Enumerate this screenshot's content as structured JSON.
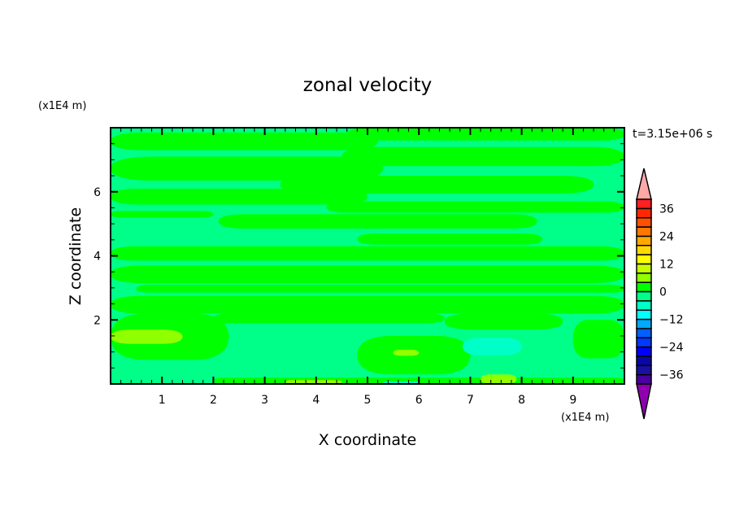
{
  "chart_data": {
    "type": "heatmap",
    "title": "zonal velocity",
    "xlabel": "X coordinate",
    "ylabel": "Z coordinate",
    "x_unit_label": "(x1E4 m)",
    "y_unit_label": "(x1E4 m)",
    "time_label": "t=3.15e+06 s",
    "xlim": [
      0,
      10
    ],
    "ylim": [
      0,
      8
    ],
    "x_ticks": [
      1,
      2,
      3,
      4,
      5,
      6,
      7,
      8,
      9
    ],
    "y_ticks": [
      2,
      4,
      6
    ],
    "colorbar": {
      "levels": [
        -40,
        -36,
        -32,
        -28,
        -24,
        -20,
        -16,
        -12,
        -8,
        -4,
        0,
        4,
        8,
        12,
        16,
        20,
        24,
        28,
        32,
        36,
        40
      ],
      "tick_labels": [
        "36",
        "24",
        "12",
        "0",
        "−12",
        "−24",
        "−36"
      ],
      "tick_values": [
        36,
        24,
        12,
        0,
        -12,
        -24,
        -36
      ],
      "colors": [
        "#4a00a0",
        "#1a10a0",
        "#0808a8",
        "#0000ff",
        "#0038ff",
        "#0060ff",
        "#00a8ff",
        "#00ffff",
        "#00ffc8",
        "#00ff88",
        "#00ff00",
        "#90ff00",
        "#c8ff00",
        "#ffff00",
        "#ffd800",
        "#ffa800",
        "#ff7800",
        "#ff5000",
        "#ff2800",
        "#ff2020"
      ],
      "over_color": "#ffa8a8",
      "under_color": "#9000b0"
    },
    "background_level": [
      -4,
      0
    ],
    "regions": [
      {
        "level": [
          0,
          4
        ],
        "x": [
          0,
          5.2
        ],
        "y": [
          7.85,
          7.3
        ]
      },
      {
        "level": [
          0,
          4
        ],
        "x": [
          4.6,
          10
        ],
        "y": [
          8.0,
          7.6
        ]
      },
      {
        "level": [
          0,
          4
        ],
        "x": [
          4.5,
          10
        ],
        "y": [
          7.4,
          6.8
        ]
      },
      {
        "level": [
          0,
          4
        ],
        "x": [
          0,
          5.3
        ],
        "y": [
          7.1,
          6.35
        ]
      },
      {
        "level": [
          0,
          4
        ],
        "x": [
          3.3,
          9.4
        ],
        "y": [
          6.5,
          5.95
        ]
      },
      {
        "level": [
          0,
          4
        ],
        "x": [
          0,
          5.0
        ],
        "y": [
          6.1,
          5.6
        ]
      },
      {
        "level": [
          0,
          4
        ],
        "x": [
          4.2,
          10
        ],
        "y": [
          5.7,
          5.35
        ]
      },
      {
        "level": [
          0,
          4
        ],
        "x": [
          0,
          2.0
        ],
        "y": [
          5.4,
          5.2
        ]
      },
      {
        "level": [
          0,
          4
        ],
        "x": [
          2.1,
          8.3
        ],
        "y": [
          5.3,
          4.85
        ]
      },
      {
        "level": [
          0,
          4
        ],
        "x": [
          4.8,
          8.4
        ],
        "y": [
          4.7,
          4.35
        ]
      },
      {
        "level": [
          0,
          4
        ],
        "x": [
          0,
          10
        ],
        "y": [
          4.3,
          3.85
        ]
      },
      {
        "level": [
          0,
          4
        ],
        "x": [
          0,
          10
        ],
        "y": [
          3.7,
          3.15
        ]
      },
      {
        "level": [
          0,
          4
        ],
        "x": [
          0.5,
          10
        ],
        "y": [
          3.1,
          2.85
        ]
      },
      {
        "level": [
          0,
          4
        ],
        "x": [
          0,
          10
        ],
        "y": [
          2.75,
          2.2
        ]
      },
      {
        "level": [
          0,
          4
        ],
        "x": [
          0,
          2.3
        ],
        "y": [
          2.2,
          0.75
        ]
      },
      {
        "level": [
          0,
          4
        ],
        "x": [
          2.0,
          6.5
        ],
        "y": [
          2.2,
          1.9
        ]
      },
      {
        "level": [
          0,
          4
        ],
        "x": [
          6.5,
          8.8
        ],
        "y": [
          2.2,
          1.7
        ]
      },
      {
        "level": [
          0,
          4
        ],
        "x": [
          4.8,
          7.0
        ],
        "y": [
          1.5,
          0.3
        ]
      },
      {
        "level": [
          0,
          4
        ],
        "x": [
          9.0,
          10
        ],
        "y": [
          2.0,
          0.8
        ]
      },
      {
        "level": [
          0,
          4
        ],
        "x": [
          2.0,
          10
        ],
        "y": [
          0.2,
          0
        ]
      },
      {
        "level": [
          4,
          8
        ],
        "x": [
          0,
          1.4
        ],
        "y": [
          1.7,
          1.25
        ]
      },
      {
        "level": [
          4,
          8
        ],
        "x": [
          5.5,
          6.0
        ],
        "y": [
          1.07,
          0.88
        ]
      },
      {
        "level": [
          4,
          8
        ],
        "x": [
          3.4,
          4.5
        ],
        "y": [
          0.12,
          0
        ]
      },
      {
        "level": [
          4,
          8
        ],
        "x": [
          7.2,
          7.9
        ],
        "y": [
          0.3,
          0
        ]
      },
      {
        "level": [
          -8,
          -4
        ],
        "x": [
          6.85,
          8.0
        ],
        "y": [
          1.44,
          0.9
        ]
      },
      {
        "level": [
          -8,
          -4
        ],
        "x": [
          5.3,
          6.0
        ],
        "y": [
          0.08,
          0
        ]
      }
    ]
  }
}
